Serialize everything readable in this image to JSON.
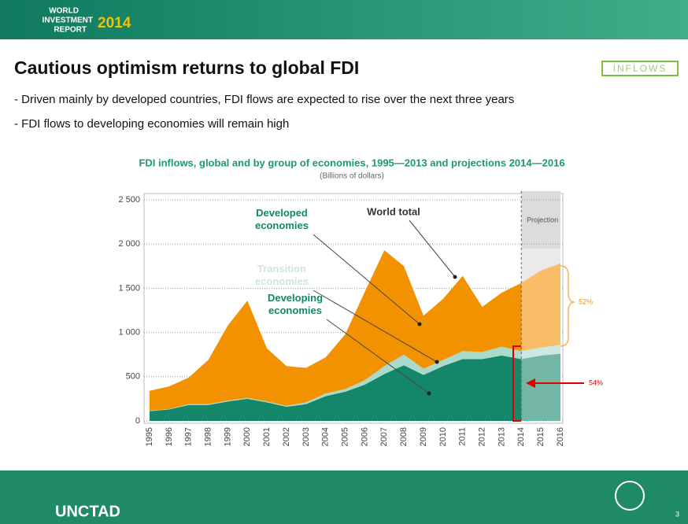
{
  "header": {
    "brand": [
      "WORLD",
      "INVESTMENT",
      "REPORT"
    ],
    "year": "2014"
  },
  "title": "Cautious optimism returns to global FDI",
  "badge": "INFLOWS",
  "bullets": [
    "- Driven mainly  by developed countries, FDI  flows are expected to rise over the next three years",
    "- FDI  flows to developing economies will remain high"
  ],
  "footer": {
    "org": "UNCTAD",
    "page": "3"
  },
  "chart_data": {
    "type": "stacked_area",
    "title": "FDI inflows, global and by group of economies, 1995—2013 and projections 2014—2016",
    "subtitle": "(Billions of dollars)",
    "categories": [
      "1995",
      "1996",
      "1997",
      "1998",
      "1999",
      "2000",
      "2001",
      "2002",
      "2003",
      "2004",
      "2005",
      "2006",
      "2007",
      "2008",
      "2009",
      "2010",
      "2011",
      "2012",
      "2013",
      "2014",
      "2015",
      "2016"
    ],
    "series": [
      {
        "name": "Developing economies",
        "color": "#14876a",
        "values": [
          110,
          130,
          180,
          180,
          220,
          250,
          210,
          160,
          190,
          280,
          330,
          410,
          530,
          630,
          520,
          620,
          700,
          700,
          740,
          700,
          740,
          760
        ]
      },
      {
        "name": "Transition economies",
        "color": "#a9dacb",
        "values": [
          5,
          5,
          10,
          10,
          10,
          10,
          10,
          10,
          20,
          30,
          30,
          50,
          90,
          120,
          70,
          70,
          90,
          80,
          100,
          90,
          90,
          100
        ]
      },
      {
        "name": "Developed economies",
        "color": "#f39200",
        "values": [
          225,
          255,
          300,
          500,
          850,
          1100,
          600,
          450,
          390,
          410,
          620,
          1000,
          1310,
          1000,
          600,
          690,
          850,
          510,
          610,
          770,
          870,
          920
        ]
      }
    ],
    "annotations": {
      "world_total": "World total",
      "projection": "Projection",
      "projection_start": "2014",
      "share_growth": "52%",
      "share_developing": "54%"
    },
    "ylim": [
      0,
      2500
    ],
    "yticks": [
      0,
      500,
      {
        "value": 1000,
        "label": "1 000"
      },
      {
        "value": 1500,
        "label": "1 500"
      },
      {
        "value": 2000,
        "label": "2 000"
      },
      {
        "value": 2500,
        "label": "2 500"
      }
    ],
    "grid": true
  }
}
